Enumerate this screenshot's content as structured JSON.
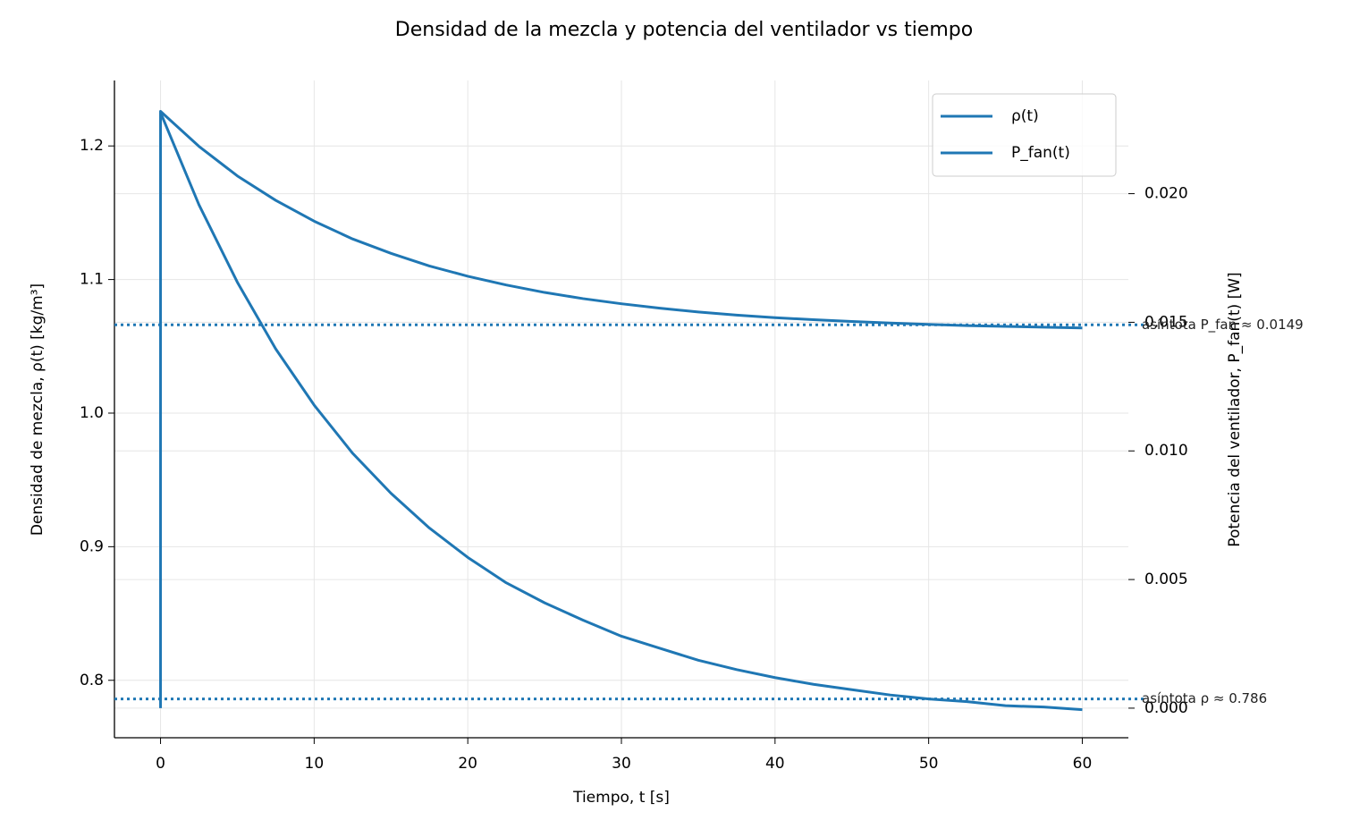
{
  "chart_data": {
    "type": "line",
    "title": "Densidad de la mezcla y potencia del ventilador vs tiempo",
    "xlabel": "Tiempo, t [s]",
    "ylabel": "Densidad de mezcla, ρ(t) [kg/m³]",
    "y2label": "Potencia del ventilador, P_fan(t) [W]",
    "xlim": [
      -3,
      63
    ],
    "xticks": [
      0,
      10,
      20,
      30,
      40,
      50,
      60
    ],
    "ylim": [
      0.757,
      1.249
    ],
    "yticks": [
      0.8,
      0.9,
      {
        "value": 1,
        "label": "1.0"
      },
      1.1,
      1.2
    ],
    "y2lim": [
      -0.00115,
      0.0244
    ],
    "y2ticks": [
      {
        "value": 0,
        "label": "0.000"
      },
      {
        "value": 0.005,
        "label": "0.005"
      },
      {
        "value": 0.01,
        "label": "0.010"
      },
      {
        "value": 0.015,
        "label": "0.015"
      },
      {
        "value": 0.02,
        "label": "0.020"
      }
    ],
    "grid": true,
    "legend": "upper right",
    "series": [
      {
        "name": "ρ(t)",
        "color": "#1f77b4",
        "x": [
          0,
          2.5,
          5,
          7.5,
          10,
          12.5,
          15,
          17.5,
          20,
          22.5,
          25,
          27.5,
          30,
          32.5,
          35,
          37.5,
          40,
          42.5,
          45,
          47.5,
          50,
          52.5,
          55,
          57.5,
          60
        ],
        "values": [
          1.225,
          1.156,
          1.098,
          1.048,
          1.006,
          0.97,
          0.94,
          0.914,
          0.892,
          0.873,
          0.858,
          0.845,
          0.833,
          0.824,
          0.815,
          0.808,
          0.802,
          0.797,
          0.793,
          0.789,
          0.786,
          0.784,
          0.781,
          0.78,
          0.778
        ]
      },
      {
        "name": "P_fan(t)",
        "color": "#1f77b4",
        "axis": "y2",
        "x": [
          0,
          0,
          2.5,
          5,
          7.5,
          10,
          12.5,
          15,
          17.5,
          20,
          22.5,
          25,
          27.5,
          30,
          32.5,
          35,
          37.5,
          40,
          42.5,
          45,
          47.5,
          50,
          52.5,
          55,
          57.5,
          60
        ],
        "values": [
          0,
          0.0232,
          0.02184,
          0.02069,
          0.01974,
          0.01893,
          0.01824,
          0.01768,
          0.01719,
          0.01679,
          0.01645,
          0.01616,
          0.01592,
          0.01572,
          0.01555,
          0.0154,
          0.01528,
          0.01518,
          0.0151,
          0.01503,
          0.01497,
          0.01492,
          0.01487,
          0.01484,
          0.01481,
          0.01478
        ]
      }
    ],
    "annotations": [
      {
        "text": "asíntota ρ ≈ 0.786",
        "value": 0.786
      },
      {
        "text": "asíntota P_fan ≈ 0.0149",
        "value": 0.0149,
        "axis": "y2"
      }
    ]
  }
}
